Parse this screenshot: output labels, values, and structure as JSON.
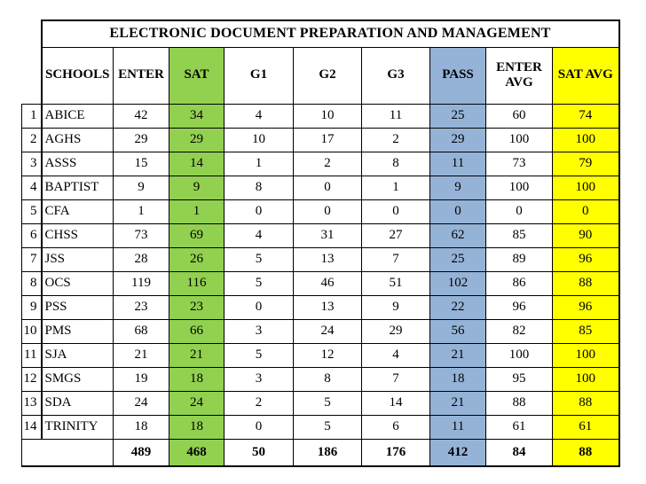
{
  "title": "ELECTRONIC DOCUMENT PREPARATION AND MANAGEMENT",
  "columns": [
    "SCHOOLS",
    "ENTER",
    "SAT",
    "G1",
    "G2",
    "G3",
    "PASS",
    "ENTER AVG",
    "SAT AVG"
  ],
  "rows": [
    {
      "num": "1",
      "school": "ABICE",
      "values": [
        "42",
        "34",
        "4",
        "10",
        "11",
        "25",
        "60",
        "74"
      ]
    },
    {
      "num": "2",
      "school": "AGHS",
      "values": [
        "29",
        "29",
        "10",
        "17",
        "2",
        "29",
        "100",
        "100"
      ]
    },
    {
      "num": "3",
      "school": "ASSS",
      "values": [
        "15",
        "14",
        "1",
        "2",
        "8",
        "11",
        "73",
        "79"
      ]
    },
    {
      "num": "4",
      "school": "BAPTIST",
      "values": [
        "9",
        "9",
        "8",
        "0",
        "1",
        "9",
        "100",
        "100"
      ]
    },
    {
      "num": "5",
      "school": "CFA",
      "values": [
        "1",
        "1",
        "0",
        "0",
        "0",
        "0",
        "0",
        "0"
      ]
    },
    {
      "num": "6",
      "school": "CHSS",
      "values": [
        "73",
        "69",
        "4",
        "31",
        "27",
        "62",
        "85",
        "90"
      ]
    },
    {
      "num": "7",
      "school": "JSS",
      "values": [
        "28",
        "26",
        "5",
        "13",
        "7",
        "25",
        "89",
        "96"
      ]
    },
    {
      "num": "8",
      "school": "OCS",
      "values": [
        "119",
        "116",
        "5",
        "46",
        "51",
        "102",
        "86",
        "88"
      ]
    },
    {
      "num": "9",
      "school": "PSS",
      "values": [
        "23",
        "23",
        "0",
        "13",
        "9",
        "22",
        "96",
        "96"
      ]
    },
    {
      "num": "10",
      "school": "PMS",
      "values": [
        "68",
        "66",
        "3",
        "24",
        "29",
        "56",
        "82",
        "85"
      ]
    },
    {
      "num": "11",
      "school": "SJA",
      "values": [
        "21",
        "21",
        "5",
        "12",
        "4",
        "21",
        "100",
        "100"
      ]
    },
    {
      "num": "12",
      "school": "SMGS",
      "values": [
        "19",
        "18",
        "3",
        "8",
        "7",
        "18",
        "95",
        "100"
      ]
    },
    {
      "num": "13",
      "school": "SDA",
      "values": [
        "24",
        "24",
        "2",
        "5",
        "14",
        "21",
        "88",
        "88"
      ]
    },
    {
      "num": "14",
      "school": "TRINITY",
      "values": [
        "18",
        "18",
        "0",
        "5",
        "6",
        "11",
        "61",
        "61"
      ]
    }
  ],
  "totals": [
    "489",
    "468",
    "50",
    "186",
    "176",
    "412",
    "84",
    "88"
  ],
  "colors": {
    "sat_column": "#92D050",
    "pass_column": "#95B3D7",
    "sat_avg_column": "#FFFF00",
    "border": "#000000",
    "page_background": "#FFFFFF"
  }
}
